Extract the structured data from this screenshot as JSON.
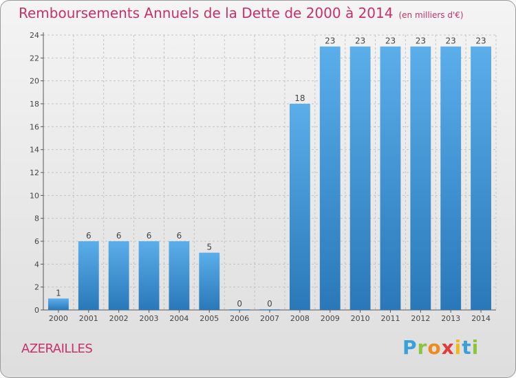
{
  "chart_data": {
    "type": "bar",
    "title": "Remboursements Annuels de la Dette de 2000 à 2014",
    "unit_label": "(en milliers d'€)",
    "categories": [
      "2000",
      "2001",
      "2002",
      "2003",
      "2004",
      "2005",
      "2006",
      "2007",
      "2008",
      "2009",
      "2010",
      "2011",
      "2012",
      "2013",
      "2014"
    ],
    "values": [
      1,
      6,
      6,
      6,
      6,
      5,
      0,
      0,
      18,
      23,
      23,
      23,
      23,
      23,
      23
    ],
    "ylim": [
      0,
      24
    ],
    "yticks": [
      0,
      2,
      4,
      6,
      8,
      10,
      12,
      14,
      16,
      18,
      20,
      22,
      24
    ],
    "grid": true,
    "bar_color": "#3d95d6",
    "title_color": "#c8306a"
  },
  "footer": {
    "commune": "AZERAILLES",
    "brand": "Proxiti"
  }
}
